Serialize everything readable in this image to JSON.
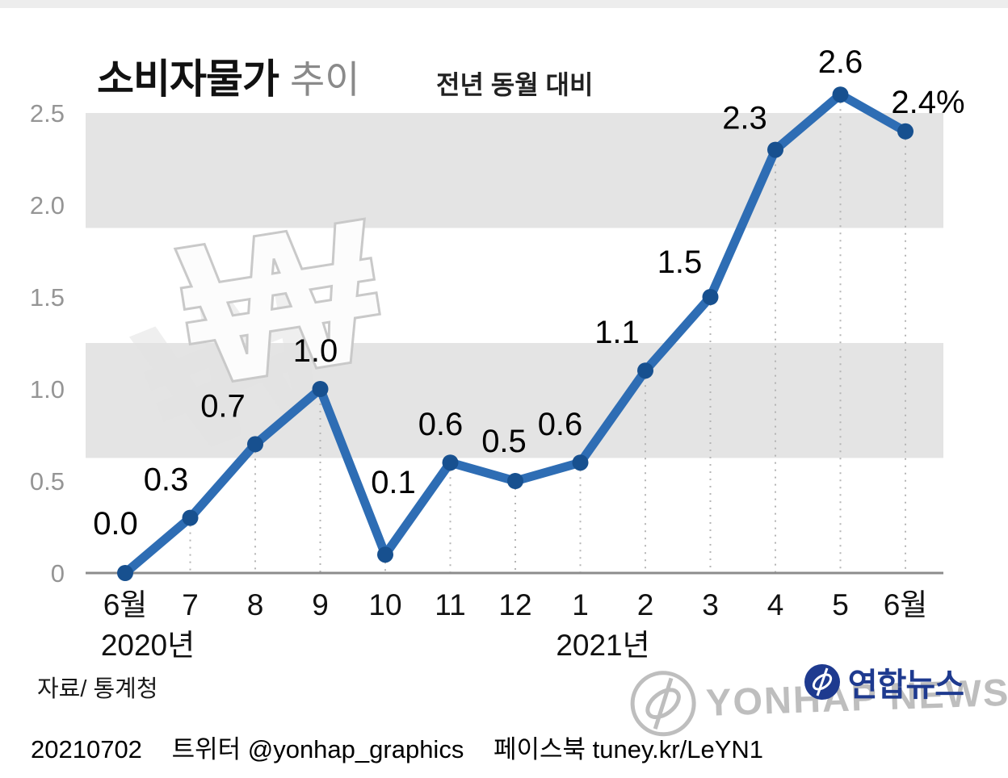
{
  "header": {
    "title_main": "소비자물가",
    "title_sub": "추이",
    "subtitle": "전년 동월 대비"
  },
  "chart_data": {
    "type": "line",
    "title": "소비자물가 추이",
    "subtitle": "전년 동월 대비",
    "categories": [
      "6월",
      "7",
      "8",
      "9",
      "10",
      "11",
      "12",
      "1",
      "2",
      "3",
      "4",
      "5",
      "6월"
    ],
    "values": [
      0.0,
      0.3,
      0.7,
      1.0,
      0.1,
      0.6,
      0.5,
      0.6,
      1.1,
      1.5,
      2.3,
      2.6,
      2.4
    ],
    "point_labels": [
      "0.0",
      "0.3",
      "0.7",
      "1.0",
      "0.1",
      "0.6",
      "0.5",
      "0.6",
      "1.1",
      "1.5",
      "2.3",
      "2.6",
      "2.4%"
    ],
    "y_ticks": [
      "0",
      "0.5",
      "1.0",
      "1.5",
      "2.0",
      "2.5"
    ],
    "y_tick_values": [
      0,
      0.5,
      1.0,
      1.5,
      2.0,
      2.5
    ],
    "ylim": [
      0,
      2.75
    ],
    "unit": "%",
    "grid": "off",
    "legend": "none",
    "year_labels": [
      {
        "label": "2020년",
        "category_index": 0
      },
      {
        "label": "2021년",
        "category_index": 7
      }
    ],
    "stripe_bands": [
      [
        1.875,
        2.5
      ],
      [
        0.625,
        1.25
      ]
    ],
    "label_dx": [
      -12,
      -30,
      -40,
      -6,
      10,
      -12,
      -14,
      -25,
      -35,
      -38,
      -38,
      0,
      28
    ],
    "label_dy": [
      -48,
      -34,
      -34,
      -34,
      -76,
      -34,
      -36,
      -34,
      -34,
      -30,
      -26,
      -27,
      -23
    ],
    "colors": {
      "line": "#2e6db4",
      "dot": "#17508f",
      "stripe": "#e4e4e4",
      "axis": "#8c8c8c",
      "dashed": "#b5b5b5"
    }
  },
  "footer": {
    "source": "자료/ 통계청",
    "date": "20210702",
    "twitter": "트위터 @yonhap_graphics",
    "facebook": "페이스북 tuney.kr/LeYN1"
  },
  "branding": {
    "logo_text": "연합뉴스",
    "watermark_text": "YONHAP NEWS",
    "won_symbol": "₩",
    "logo_color": "#1e3a8f"
  }
}
